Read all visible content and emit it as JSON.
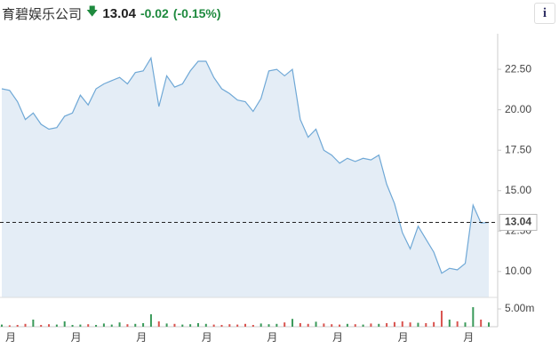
{
  "header": {
    "name": "育碧娱乐公司",
    "price": "13.04",
    "change": "-0.02",
    "change_pct": "(-0.15%)",
    "info": "i"
  },
  "chart_data": {
    "type": "line",
    "color": "#6fa8d6",
    "fill": "#e4edf6",
    "values": [
      21.3,
      21.2,
      20.5,
      19.4,
      19.8,
      19.1,
      18.8,
      18.9,
      19.6,
      19.8,
      20.9,
      20.3,
      21.3,
      21.6,
      21.8,
      22.0,
      21.6,
      22.3,
      22.4,
      23.2,
      20.2,
      22.1,
      21.4,
      21.6,
      22.4,
      23.0,
      23.0,
      22.0,
      21.3,
      21.0,
      20.6,
      20.5,
      19.9,
      20.7,
      22.4,
      22.5,
      22.1,
      22.5,
      19.4,
      18.3,
      18.8,
      17.5,
      17.2,
      16.7,
      17.0,
      16.8,
      17.0,
      16.9,
      17.2,
      15.4,
      14.2,
      12.4,
      11.4,
      12.8,
      12.0,
      11.2,
      9.9,
      10.2,
      10.1,
      10.5,
      14.1,
      13.0,
      13.04
    ],
    "ylim": [
      8.4,
      24.7
    ],
    "yticks": [
      {
        "value": 10,
        "label": "10.00"
      },
      {
        "value": 12.5,
        "label": "12.50"
      },
      {
        "value": 15,
        "label": "15.00"
      },
      {
        "value": 17.5,
        "label": "17.50"
      },
      {
        "value": 20,
        "label": "20.00"
      },
      {
        "value": 22.5,
        "label": "22.50"
      }
    ],
    "current_price": 13.04,
    "volume": [
      600000,
      400000,
      500000,
      800000,
      2000000,
      500000,
      700000,
      600000,
      1500000,
      500000,
      600000,
      700000,
      500000,
      900000,
      600000,
      1200000,
      700000,
      800000,
      1000000,
      3500000,
      1500000,
      900000,
      800000,
      600000,
      700000,
      1000000,
      800000,
      600000,
      500000,
      700000,
      600000,
      800000,
      500000,
      900000,
      700000,
      800000,
      1200000,
      2200000,
      1000000,
      800000,
      1400000,
      900000,
      700000,
      600000,
      800000,
      700000,
      600000,
      900000,
      800000,
      1000000,
      1300000,
      1500000,
      1200000,
      1100000,
      1000000,
      1300000,
      4500000,
      2000000,
      1500000,
      1200000,
      5500000,
      2000000,
      1200000
    ],
    "vol_ylim": [
      0,
      7500000
    ],
    "vol_ticks": [
      {
        "value": 5000000,
        "label": "5.00m"
      }
    ],
    "up_color": "#3a9a5a",
    "down_color": "#d9534f",
    "x_labels": [
      "月",
      "月",
      "月",
      "月",
      "月",
      "月",
      "月",
      "月"
    ]
  }
}
